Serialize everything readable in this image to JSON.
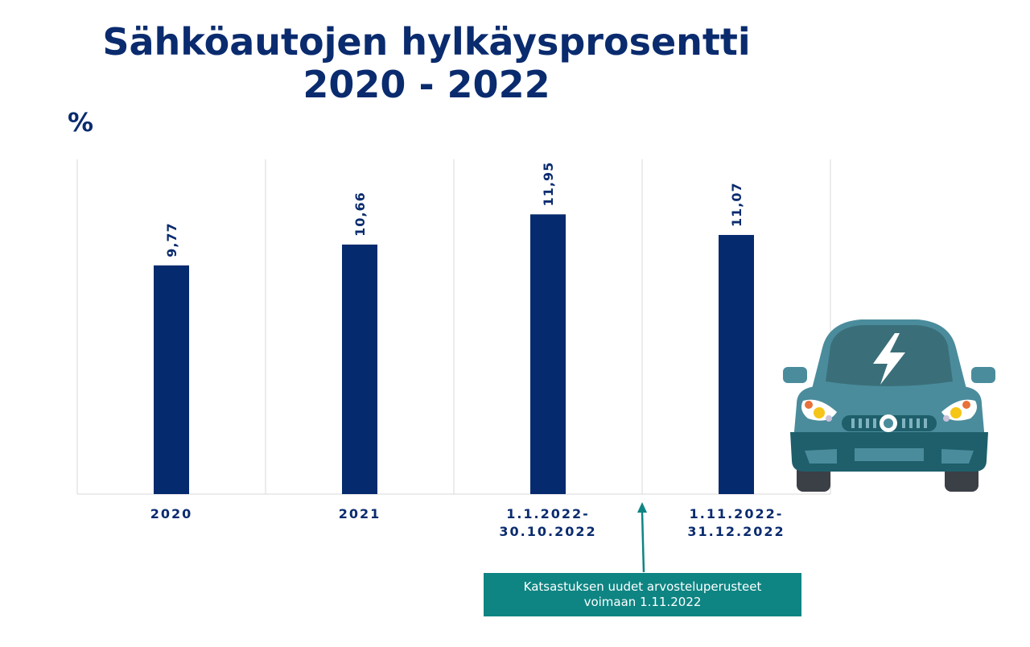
{
  "title": {
    "line1": "Sähköautojen hylkäysprosentti",
    "line2": "2020 - 2022"
  },
  "unit_label": "%",
  "colors": {
    "bar": "#062a6e",
    "title": "#0a2b6e",
    "callout_bg": "#0e8583",
    "car_body": "#4a8c9c"
  },
  "chart_data": {
    "type": "bar",
    "title": "Sähköautojen hylkäysprosentti 2020 - 2022",
    "ylabel": "%",
    "xlabel": "",
    "categories": [
      [
        "2020"
      ],
      [
        "2021"
      ],
      [
        "1.1.2022-",
        "30.10.2022"
      ],
      [
        "1.11.2022-",
        "31.12.2022"
      ]
    ],
    "values": [
      9.77,
      10.66,
      11.95,
      11.07
    ],
    "value_labels": [
      "9,77",
      "10,66",
      "11,95",
      "11,07"
    ],
    "ylim": [
      0,
      14.3
    ],
    "grid": "vertical category separators",
    "legend": "none"
  },
  "annotation": {
    "line1": "Katsastuksen uudet arvosteluperusteet",
    "line2": "voimaan 1.11.2022"
  },
  "illustration": {
    "icon": "electric-car-icon"
  }
}
